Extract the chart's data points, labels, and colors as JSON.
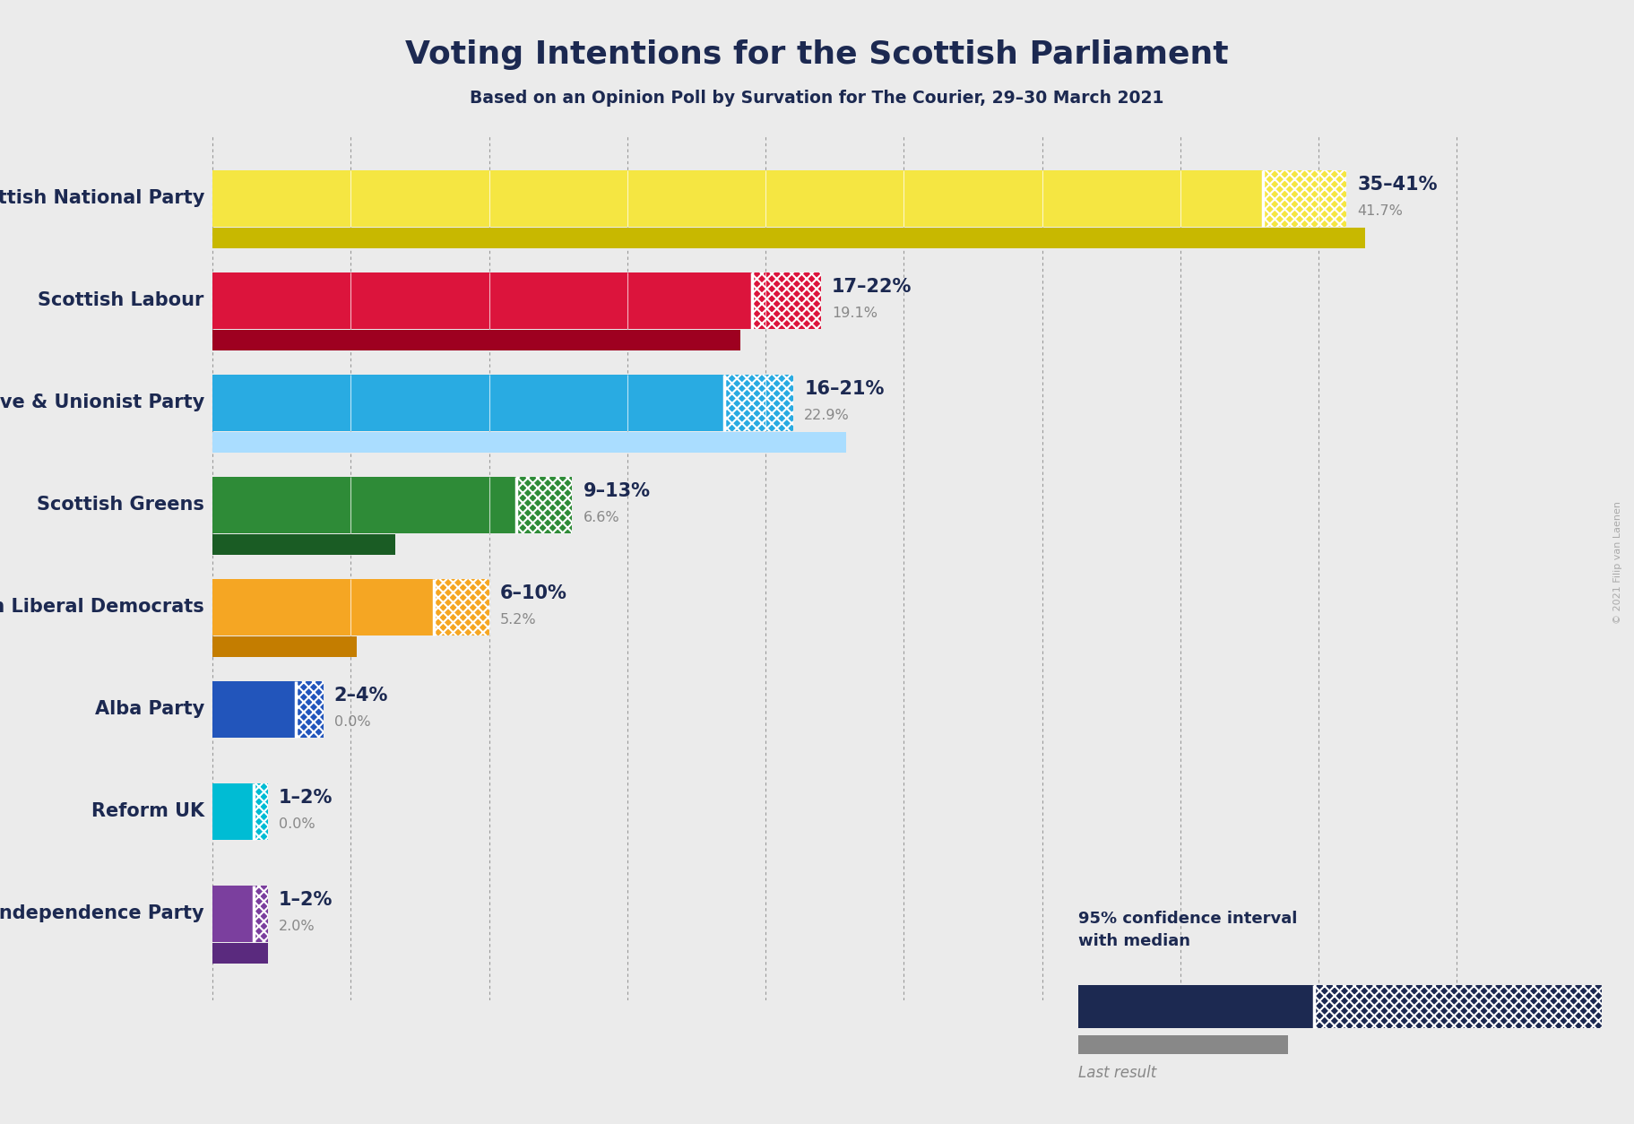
{
  "title": "Voting Intentions for the Scottish Parliament",
  "subtitle": "Based on an Opinion Poll by Survation for The Courier, 29–30 March 2021",
  "copyright": "© 2021 Filip van Laenen",
  "parties": [
    "Scottish National Party",
    "Scottish Labour",
    "Scottish Conservative & Unionist Party",
    "Scottish Greens",
    "Scottish Liberal Democrats",
    "Alba Party",
    "Reform UK",
    "UK Independence Party"
  ],
  "ci_low": [
    35,
    17,
    16,
    9,
    6,
    2,
    1,
    1
  ],
  "ci_high": [
    41,
    22,
    21,
    13,
    10,
    4,
    2,
    2
  ],
  "last_result": [
    41.7,
    19.1,
    22.9,
    6.6,
    5.2,
    0.0,
    0.0,
    2.0
  ],
  "ci_labels": [
    "35–41%",
    "17–22%",
    "16–21%",
    "9–13%",
    "6–10%",
    "2–4%",
    "1–2%",
    "1–2%"
  ],
  "colors": [
    "#F5E642",
    "#DC143C",
    "#29ABE2",
    "#2E8B37",
    "#F5A623",
    "#2255BB",
    "#00BCD4",
    "#7B3F9E"
  ],
  "last_result_colors": [
    "#C8B800",
    "#9E0020",
    "#AADDFF",
    "#1A5C24",
    "#C47D00",
    "#143D75",
    "#00899F",
    "#5A2A7E"
  ],
  "bg_color": "#EBEBEB",
  "title_color": "#1C2951",
  "bar_height": 0.55,
  "axis_max": 45
}
